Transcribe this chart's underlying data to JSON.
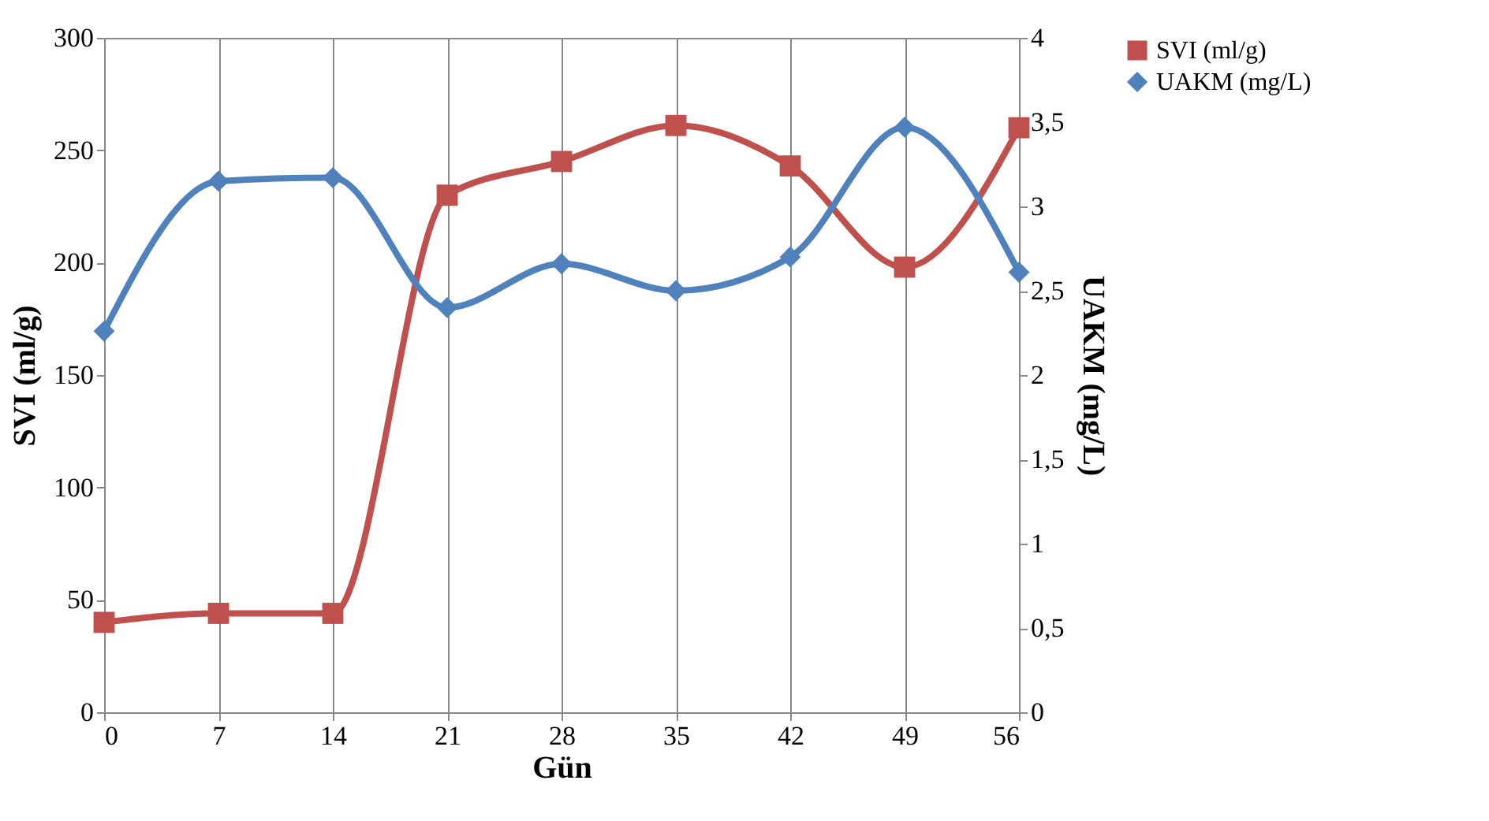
{
  "chart_data": {
    "type": "line",
    "xlabel": "Gün",
    "ylabel": "SVI (ml/g)",
    "y2label": "UAKM (mg/L)",
    "x": [
      0,
      7,
      14,
      21,
      28,
      35,
      42,
      49,
      56
    ],
    "series": [
      {
        "name": "SVI (ml/g)",
        "color": "#c0504d",
        "marker": "square",
        "values": [
          40,
          44,
          44,
          230,
          245,
          261,
          243,
          198,
          260
        ]
      },
      {
        "name": "UAKM (mg/L)",
        "color": "#4f81bd",
        "marker": "diamond",
        "axis": "y2",
        "values": [
          2.26,
          3.15,
          3.17,
          2.4,
          2.66,
          2.5,
          2.7,
          3.47,
          2.61
        ]
      }
    ],
    "xlim": [
      0,
      56
    ],
    "xticks": [
      0,
      7,
      14,
      21,
      28,
      35,
      42,
      49,
      56
    ],
    "ylim": [
      0,
      300
    ],
    "yticks": [
      0,
      50,
      100,
      150,
      200,
      250,
      300
    ],
    "y2lim": [
      0,
      4
    ],
    "y2ticks": [
      0,
      {
        "value": 0.5,
        "label": "0,5"
      },
      1,
      {
        "value": 1.5,
        "label": "1,5"
      },
      2,
      {
        "value": 2.5,
        "label": "2,5"
      },
      3,
      {
        "value": 3.5,
        "label": "3,5"
      },
      4
    ],
    "grid": "x",
    "legend": "top right",
    "line_style": "solid"
  }
}
